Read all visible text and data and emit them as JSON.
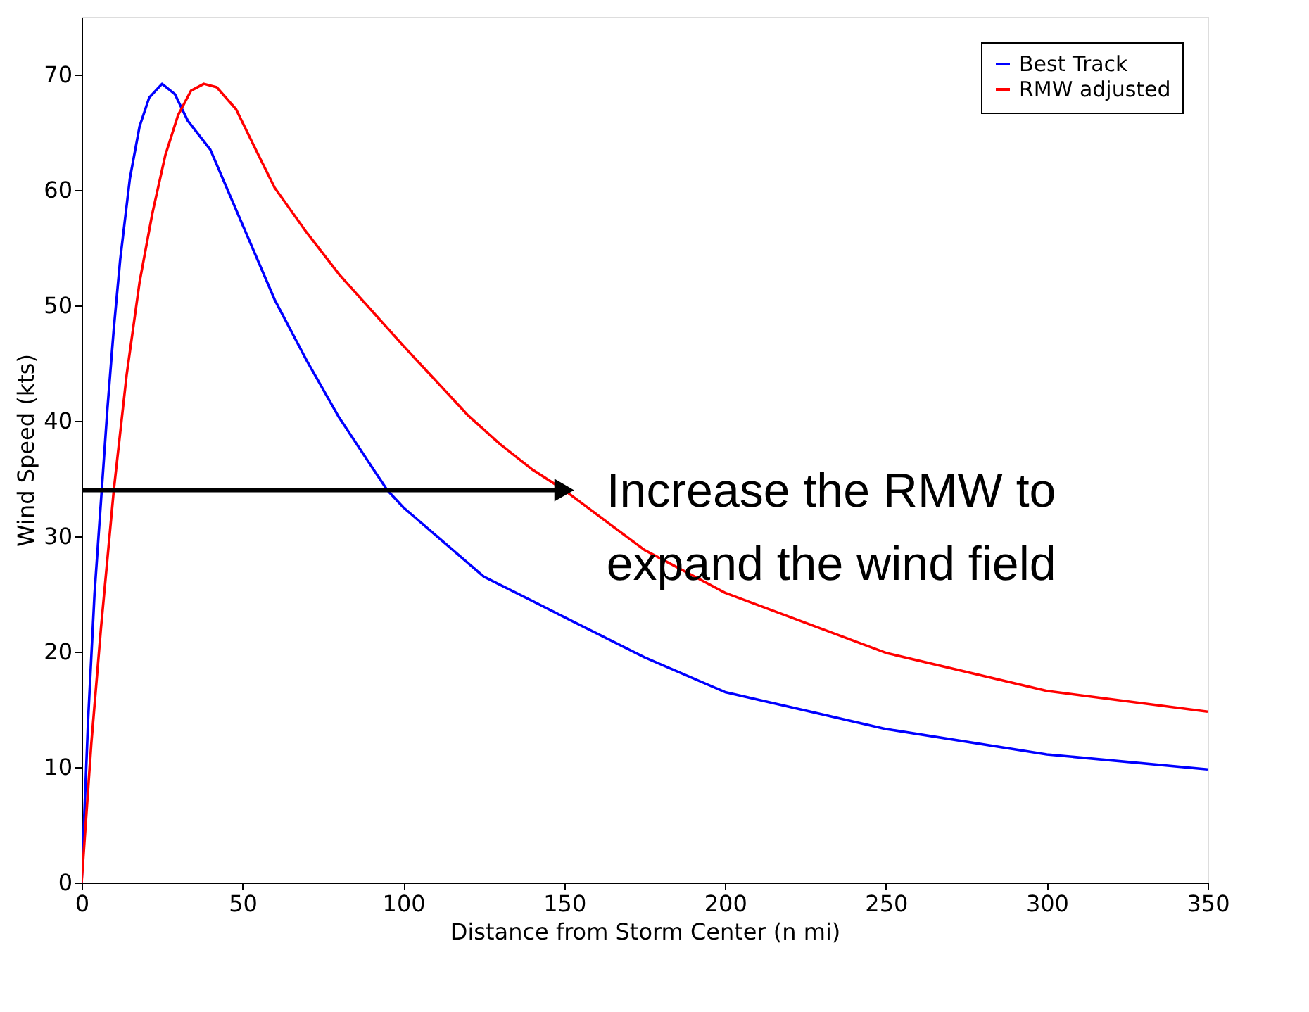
{
  "chart_data": {
    "type": "line",
    "xlabel": "Distance from Storm Center (n mi)",
    "ylabel": "Wind Speed (kts)",
    "xlim": [
      0,
      350
    ],
    "xticks": [
      0,
      50,
      100,
      150,
      200,
      250,
      300,
      350
    ],
    "ylim": [
      0,
      75
    ],
    "yticks": [
      0,
      10,
      20,
      30,
      40,
      50,
      60,
      70
    ],
    "grid": false,
    "legend": "top right",
    "line_style": "solid",
    "marker": "none",
    "series": [
      {
        "name": "Best Track",
        "color": "#0000ff",
        "x": [
          0,
          2,
          4,
          6,
          8,
          10,
          12,
          15,
          18,
          21,
          25,
          29,
          33,
          40,
          50,
          60,
          70,
          80,
          95,
          100,
          125,
          150,
          175,
          200,
          250,
          300,
          350
        ],
        "values": [
          0,
          14,
          25,
          33,
          41,
          48,
          54,
          61,
          65.5,
          68,
          69.2,
          68.3,
          66,
          63.5,
          57,
          50.5,
          45.2,
          40.3,
          34,
          32.5,
          26.5,
          23,
          19.5,
          16.5,
          13.3,
          11.1,
          9.8
        ]
      },
      {
        "name": "RMW adjusted",
        "color": "#ff0000",
        "x": [
          0,
          3,
          6,
          10,
          14,
          18,
          22,
          26,
          30,
          34,
          38,
          42,
          48,
          55,
          60,
          70,
          80,
          90,
          100,
          110,
          120,
          130,
          140,
          150,
          175,
          200,
          250,
          300,
          350
        ],
        "values": [
          0,
          12,
          22,
          34,
          44,
          52,
          58,
          63,
          66.5,
          68.6,
          69.2,
          68.9,
          67,
          63,
          60.2,
          56.3,
          52.7,
          49.6,
          46.5,
          43.5,
          40.5,
          38,
          35.8,
          34,
          28.8,
          25.1,
          19.9,
          16.6,
          14.8
        ]
      }
    ],
    "annotations": [
      {
        "text": "Increase the RMW to\nexpand the wind field",
        "x": 150,
        "y": 34
      }
    ]
  }
}
